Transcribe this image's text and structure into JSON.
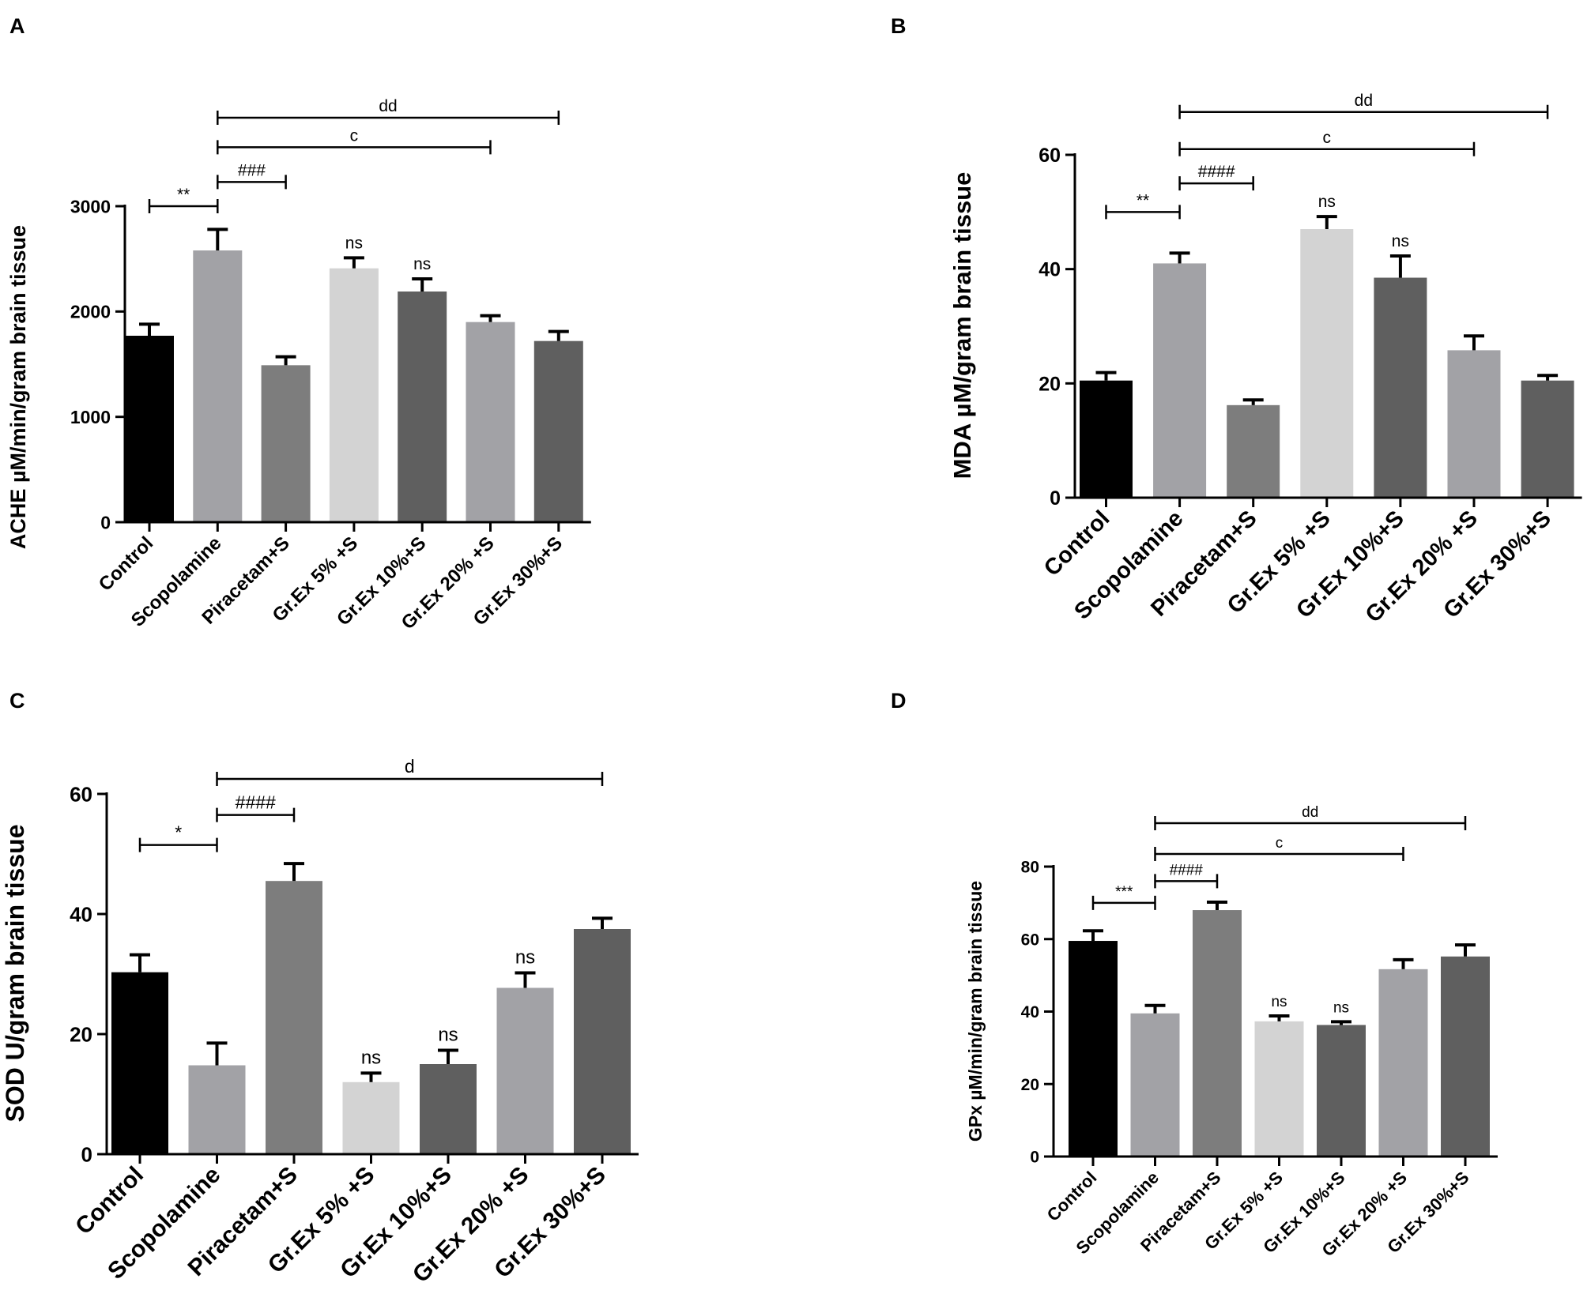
{
  "chart_data": [
    {
      "panel": "A",
      "type": "bar",
      "ylabel": "ACHE µM/min/gram brain tissue",
      "ylim": [
        0,
        3000
      ],
      "yticks": [
        0,
        1000,
        2000,
        3000
      ],
      "categories": [
        "Control",
        "Scopolamine",
        "Piracetam+S",
        "Gr.Ex 5% +S",
        "Gr.Ex 10%+S",
        "Gr.Ex 20% +S",
        "Gr.Ex 30%+S"
      ],
      "values": [
        1770,
        2580,
        1490,
        2410,
        2190,
        1900,
        1720
      ],
      "errors": [
        110,
        200,
        80,
        100,
        120,
        60,
        90
      ],
      "colors": [
        "#000000",
        "#a2a2a6",
        "#7d7d7d",
        "#d3d3d3",
        "#5f5f5f",
        "#a2a2a6",
        "#5f5f5f"
      ],
      "bar_labels": [
        "",
        "",
        "",
        "ns",
        "ns",
        "",
        ""
      ],
      "brackets": [
        {
          "from": 0,
          "to": 1,
          "label": "**",
          "y": 3000
        },
        {
          "from": 1,
          "to": 2,
          "label": "###",
          "y": 3230
        },
        {
          "from": 1,
          "to": 5,
          "label": "c",
          "y": 3560
        },
        {
          "from": 1,
          "to": 6,
          "label": "dd",
          "y": 3840
        }
      ]
    },
    {
      "panel": "B",
      "type": "bar",
      "ylabel": "MDA µM/gram brain tissue",
      "ylim": [
        0,
        60
      ],
      "yticks": [
        0,
        20,
        40,
        60
      ],
      "categories": [
        "Control",
        "Scopolamine",
        "Piracetam+S",
        "Gr.Ex 5% +S",
        "Gr.Ex 10%+S",
        "Gr.Ex 20% +S",
        "Gr.Ex 30%+S"
      ],
      "values": [
        20.5,
        41,
        16.2,
        47,
        38.5,
        25.8,
        20.5
      ],
      "errors": [
        1.4,
        1.8,
        0.9,
        2.2,
        3.8,
        2.5,
        0.9
      ],
      "colors": [
        "#000000",
        "#a2a2a6",
        "#7d7d7d",
        "#d3d3d3",
        "#5f5f5f",
        "#a2a2a6",
        "#5f5f5f"
      ],
      "bar_labels": [
        "",
        "",
        "",
        "ns",
        "ns",
        "",
        ""
      ],
      "brackets": [
        {
          "from": 0,
          "to": 1,
          "label": "**",
          "y": 50
        },
        {
          "from": 1,
          "to": 2,
          "label": "####",
          "y": 55
        },
        {
          "from": 1,
          "to": 5,
          "label": "c",
          "y": 61
        },
        {
          "from": 1,
          "to": 6,
          "label": "dd",
          "y": 67.5
        }
      ]
    },
    {
      "panel": "C",
      "type": "bar",
      "ylabel": "SOD U/gram brain tissue",
      "ylim": [
        0,
        60
      ],
      "yticks": [
        0,
        20,
        40,
        60
      ],
      "categories": [
        "Control",
        "Scopolamine",
        "Piracetam+S",
        "Gr.Ex 5% +S",
        "Gr.Ex 10%+S",
        "Gr.Ex 20% +S",
        "Gr.Ex 30%+S"
      ],
      "values": [
        30.3,
        14.8,
        45.5,
        12,
        15,
        27.7,
        37.5
      ],
      "errors": [
        2.9,
        3.7,
        2.9,
        1.5,
        2.3,
        2.5,
        1.8
      ],
      "colors": [
        "#000000",
        "#a2a2a6",
        "#7d7d7d",
        "#d3d3d3",
        "#5f5f5f",
        "#a2a2a6",
        "#5f5f5f"
      ],
      "bar_labels": [
        "",
        "",
        "",
        "ns",
        "ns",
        "ns",
        ""
      ],
      "brackets": [
        {
          "from": 0,
          "to": 1,
          "label": "*",
          "y": 51.5
        },
        {
          "from": 1,
          "to": 2,
          "label": "####",
          "y": 56.5
        },
        {
          "from": 1,
          "to": 6,
          "label": "d",
          "y": 62.5
        }
      ]
    },
    {
      "panel": "D",
      "type": "bar",
      "ylabel": "GPx µM/min/gram brain tissue",
      "ylim": [
        0,
        80
      ],
      "yticks": [
        0,
        20,
        40,
        60,
        80
      ],
      "categories": [
        "Control",
        "Scopolamine",
        "Piracetam+S",
        "Gr.Ex 5% +S",
        "Gr.Ex 10%+S",
        "Gr.Ex 20% +S",
        "Gr.Ex 30%+S"
      ],
      "values": [
        59.5,
        39.5,
        68,
        37.3,
        36.3,
        51.7,
        55.2
      ],
      "errors": [
        2.8,
        2.2,
        2.2,
        1.5,
        0.9,
        2.6,
        3.2
      ],
      "colors": [
        "#000000",
        "#a2a2a6",
        "#7d7d7d",
        "#d3d3d3",
        "#5f5f5f",
        "#a2a2a6",
        "#5f5f5f"
      ],
      "bar_labels": [
        "",
        "",
        "",
        "ns",
        "ns",
        "",
        ""
      ],
      "brackets": [
        {
          "from": 0,
          "to": 1,
          "label": "***",
          "y": 70
        },
        {
          "from": 1,
          "to": 2,
          "label": "####",
          "y": 76
        },
        {
          "from": 1,
          "to": 5,
          "label": "c",
          "y": 83.5
        },
        {
          "from": 1,
          "to": 6,
          "label": "dd",
          "y": 92
        }
      ]
    }
  ]
}
